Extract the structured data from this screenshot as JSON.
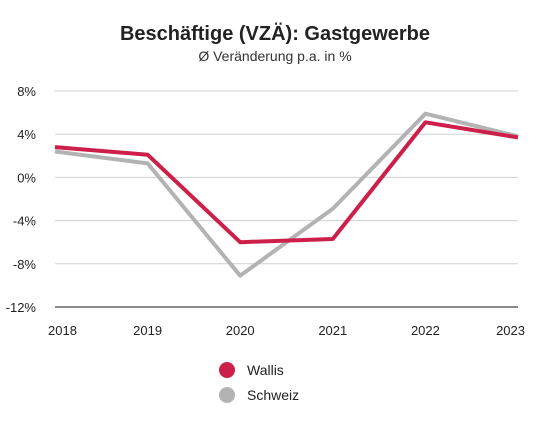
{
  "chart_data": {
    "type": "line",
    "title": "Beschäftige (VZÄ): Gastgewerbe",
    "subtitle": "Ø Veränderung p.a. in %",
    "xlabel": "",
    "ylabel": "",
    "x": [
      "2018",
      "2019",
      "2020",
      "2021",
      "2022",
      "2023"
    ],
    "ylim": [
      -12,
      8
    ],
    "yticks": [
      8,
      4,
      0,
      -4,
      -8,
      -12
    ],
    "ytick_labels": [
      "8%",
      "4%",
      "0%",
      "-4%",
      "-8%",
      "-12%"
    ],
    "grid": "horizontal",
    "legend_position": "bottom",
    "series": [
      {
        "name": "Wallis",
        "color": "#cc1f4a",
        "values": [
          2.8,
          2.1,
          -6.0,
          -5.7,
          5.1,
          3.7
        ]
      },
      {
        "name": "Schweiz",
        "color": "#b3b3b3",
        "values": [
          2.4,
          1.3,
          -9.1,
          -2.9,
          5.9,
          3.8
        ]
      }
    ]
  }
}
